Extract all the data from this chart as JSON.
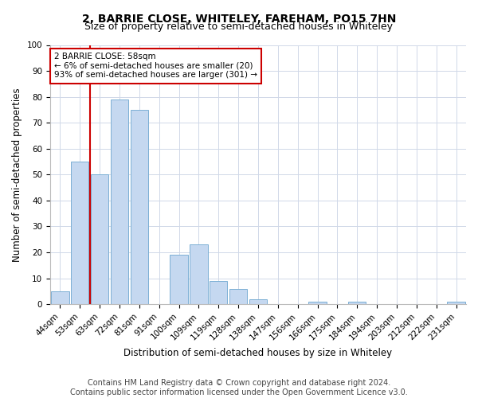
{
  "title": "2, BARRIE CLOSE, WHITELEY, FAREHAM, PO15 7HN",
  "subtitle": "Size of property relative to semi-detached houses in Whiteley",
  "xlabel": "Distribution of semi-detached houses by size in Whiteley",
  "ylabel": "Number of semi-detached properties",
  "categories": [
    "44sqm",
    "53sqm",
    "63sqm",
    "72sqm",
    "81sqm",
    "91sqm",
    "100sqm",
    "109sqm",
    "119sqm",
    "128sqm",
    "138sqm",
    "147sqm",
    "156sqm",
    "166sqm",
    "175sqm",
    "184sqm",
    "194sqm",
    "203sqm",
    "212sqm",
    "222sqm",
    "231sqm"
  ],
  "values": [
    5,
    55,
    50,
    79,
    75,
    0,
    19,
    23,
    9,
    6,
    2,
    0,
    0,
    1,
    0,
    1,
    0,
    0,
    0,
    0,
    1
  ],
  "bar_color": "#c5d8f0",
  "bar_edge_color": "#7bafd4",
  "property_line_x": 1.5,
  "annotation_text": "2 BARRIE CLOSE: 58sqm\n← 6% of semi-detached houses are smaller (20)\n93% of semi-detached houses are larger (301) →",
  "annotation_box_color": "#ffffff",
  "annotation_box_edge": "#cc0000",
  "property_line_color": "#cc0000",
  "ylim": [
    0,
    100
  ],
  "yticks": [
    0,
    10,
    20,
    30,
    40,
    50,
    60,
    70,
    80,
    90,
    100
  ],
  "footer1": "Contains HM Land Registry data © Crown copyright and database right 2024.",
  "footer2": "Contains public sector information licensed under the Open Government Licence v3.0.",
  "bg_color": "#ffffff",
  "grid_color": "#d0d8e8",
  "title_fontsize": 10,
  "subtitle_fontsize": 9,
  "axis_label_fontsize": 8.5,
  "tick_fontsize": 7.5,
  "footer_fontsize": 7
}
